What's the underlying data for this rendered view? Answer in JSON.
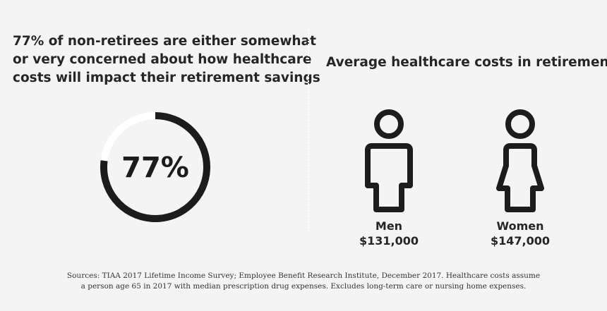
{
  "left": {
    "heading_lines": [
      "77% of non-retirees are either somewhat",
      "or very concerned about how healthcare",
      "costs will impact their retirement savings"
    ]
  },
  "chart_data": {
    "type": "pie",
    "value_label": "77%",
    "values": [
      77,
      23
    ],
    "colors": {
      "filled": "#1c1c1c",
      "remaining": "#ffffff"
    }
  },
  "right": {
    "heading": "Average healthcare costs in retirement:",
    "men": {
      "label": "Men",
      "value": "$131,000"
    },
    "women": {
      "label": "Women",
      "value": "$147,000"
    }
  },
  "footer": {
    "lines": [
      "Sources: TIAA 2017 Lifetime Income Survey; Employee Benefit Research Institute, December 2017. Healthcare costs assume",
      "a person age 65 in 2017 with median prescription drug expenses. Excludes long-term care or nursing home expenses."
    ]
  }
}
